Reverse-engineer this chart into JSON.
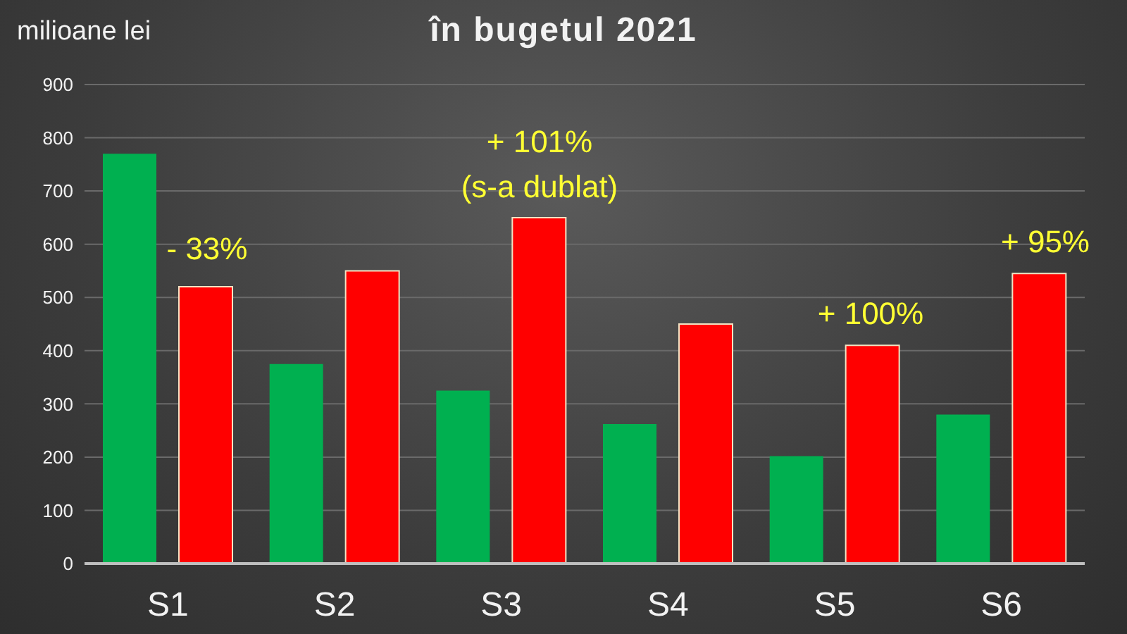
{
  "chart_data": {
    "type": "bar",
    "title": "în bugetul 2021",
    "ylabel": "milioane lei",
    "categories": [
      "S1",
      "S2",
      "S3",
      "S4",
      "S5",
      "S6"
    ],
    "series": [
      {
        "color": "#00b050",
        "values": [
          770,
          375,
          325,
          262,
          202,
          280
        ]
      },
      {
        "color": "#ff0000",
        "values": [
          520,
          550,
          650,
          450,
          410,
          545
        ]
      }
    ],
    "ylim": [
      0,
      900
    ],
    "yticks": [
      0,
      100,
      200,
      300,
      400,
      500,
      600,
      700,
      800,
      900
    ],
    "grid": "y",
    "annotations": [
      "- 33%",
      "+ 101%\n(s-a dublat)",
      "+ 100%",
      "+ 95%"
    ]
  }
}
